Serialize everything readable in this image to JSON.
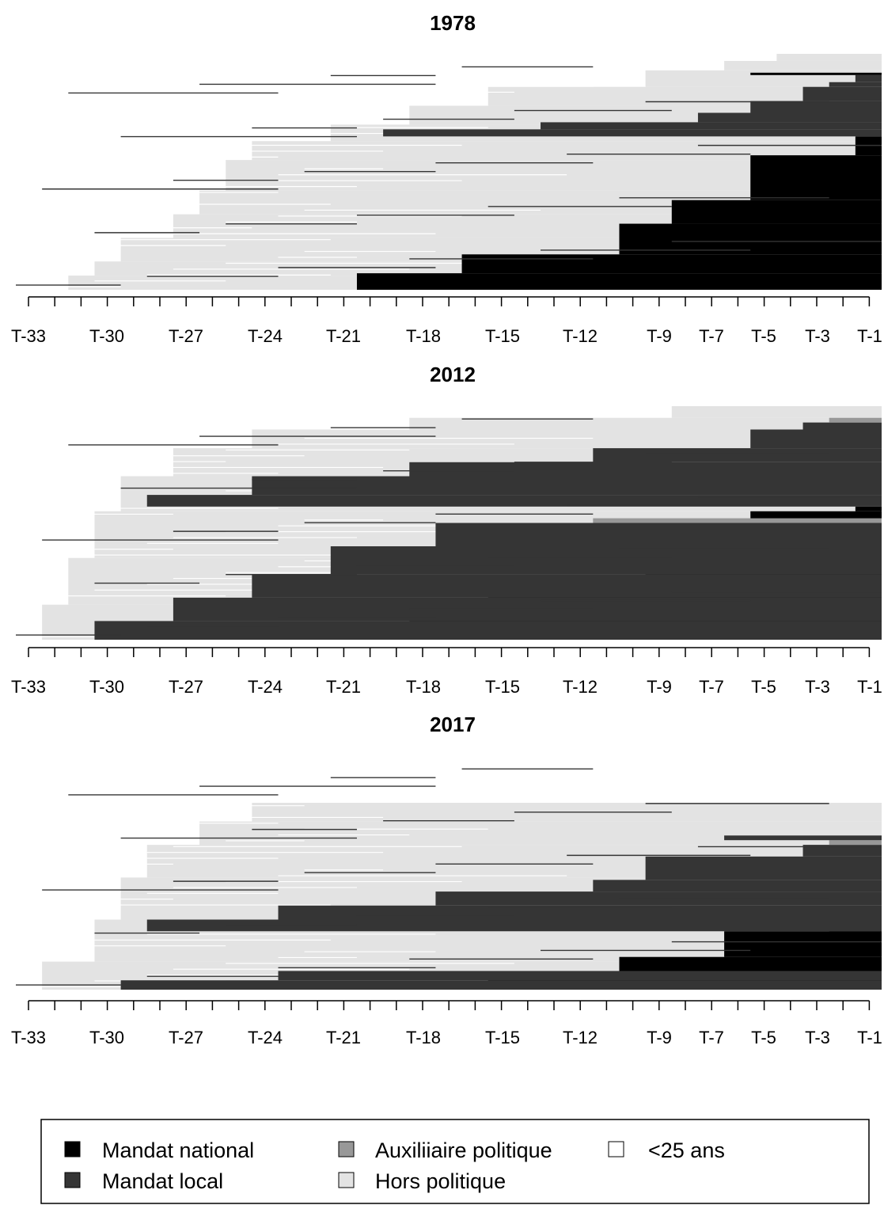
{
  "colors": {
    "national": "#000000",
    "local": "#353535",
    "auxiliary": "#989898",
    "outside": "#e3e3e3",
    "under25": "#ffffff"
  },
  "chart_data": [
    {
      "type": "sequence-index",
      "title": "1978",
      "x_periods": [
        "T-33",
        "T-32",
        "T-31",
        "T-30",
        "T-29",
        "T-28",
        "T-27",
        "T-26",
        "T-25",
        "T-24",
        "T-23",
        "T-22",
        "T-21",
        "T-20",
        "T-19",
        "T-18",
        "T-17",
        "T-16",
        "T-15",
        "T-14",
        "T-13",
        "T-12",
        "T-11",
        "T-10",
        "T-9",
        "T-8",
        "T-7",
        "T-6",
        "T-5",
        "T-4",
        "T-3",
        "T-2",
        "T-1"
      ],
      "tick_labels": [
        "T-33",
        "T-30",
        "T-27",
        "T-24",
        "T-21",
        "T-18",
        "T-15",
        "T-12",
        "T-9",
        "T-7",
        "T-5",
        "T-3",
        "T-1"
      ],
      "bands": [
        {
          "state": "national",
          "from": 0.0,
          "to": 0.0,
          "start": "T-33"
        },
        {
          "state": "national",
          "from": 0.0,
          "to": 0.07,
          "start": "T-20"
        },
        {
          "state": "national",
          "from": 0.07,
          "to": 0.15,
          "start": "T-16"
        },
        {
          "state": "national",
          "from": 0.15,
          "to": 0.28,
          "start": "T-10"
        },
        {
          "state": "national",
          "from": 0.28,
          "to": 0.38,
          "start": "T-8"
        },
        {
          "state": "national",
          "from": 0.38,
          "to": 0.57,
          "start": "T-5"
        },
        {
          "state": "national",
          "from": 0.57,
          "to": 0.65,
          "start": "T-1"
        },
        {
          "state": "local",
          "from": 0.65,
          "to": 0.68,
          "start": "T-19"
        },
        {
          "state": "local",
          "from": 0.68,
          "to": 0.71,
          "start": "T-13"
        },
        {
          "state": "local",
          "from": 0.71,
          "to": 0.75,
          "start": "T-7"
        },
        {
          "state": "local",
          "from": 0.75,
          "to": 0.8,
          "start": "T-5"
        },
        {
          "state": "local",
          "from": 0.8,
          "to": 0.86,
          "start": "T-3"
        },
        {
          "state": "local",
          "from": 0.86,
          "to": 0.88,
          "start": "T-2"
        },
        {
          "state": "local",
          "from": 0.88,
          "to": 0.91,
          "start": "T-1"
        },
        {
          "state": "national",
          "from": 0.91,
          "to": 0.92,
          "start": "T-5"
        }
      ],
      "outside_until": [
        {
          "from": 0.0,
          "to": 0.06,
          "start": "T-31"
        },
        {
          "from": 0.06,
          "to": 0.12,
          "start": "T-30"
        },
        {
          "from": 0.12,
          "to": 0.22,
          "start": "T-29"
        },
        {
          "from": 0.22,
          "to": 0.32,
          "start": "T-27"
        },
        {
          "from": 0.32,
          "to": 0.42,
          "start": "T-26"
        },
        {
          "from": 0.42,
          "to": 0.55,
          "start": "T-25"
        },
        {
          "from": 0.55,
          "to": 0.63,
          "start": "T-24"
        },
        {
          "from": 0.63,
          "to": 0.7,
          "start": "T-21"
        },
        {
          "from": 0.7,
          "to": 0.78,
          "start": "T-18"
        },
        {
          "from": 0.78,
          "to": 0.86,
          "start": "T-15"
        },
        {
          "from": 0.86,
          "to": 0.93,
          "start": "T-9"
        },
        {
          "from": 0.93,
          "to": 0.97,
          "start": "T-6"
        },
        {
          "from": 0.97,
          "to": 1.0,
          "start": "T-4"
        }
      ],
      "outside_base": "T-20"
    },
    {
      "type": "sequence-index",
      "title": "2012",
      "x_periods": [
        "T-33",
        "T-32",
        "T-31",
        "T-30",
        "T-29",
        "T-28",
        "T-27",
        "T-26",
        "T-25",
        "T-24",
        "T-23",
        "T-22",
        "T-21",
        "T-20",
        "T-19",
        "T-18",
        "T-17",
        "T-16",
        "T-15",
        "T-14",
        "T-13",
        "T-12",
        "T-11",
        "T-10",
        "T-9",
        "T-8",
        "T-7",
        "T-6",
        "T-5",
        "T-4",
        "T-3",
        "T-2",
        "T-1"
      ],
      "tick_labels": [
        "T-33",
        "T-30",
        "T-27",
        "T-24",
        "T-21",
        "T-18",
        "T-15",
        "T-12",
        "T-9",
        "T-7",
        "T-5",
        "T-3",
        "T-1"
      ],
      "bands": [
        {
          "state": "national",
          "from": 0.0,
          "to": 0.03,
          "start": "T-24"
        },
        {
          "state": "national",
          "from": 0.03,
          "to": 0.1,
          "start": "T-18"
        },
        {
          "state": "national",
          "from": 0.1,
          "to": 0.2,
          "start": "T-15"
        },
        {
          "state": "national",
          "from": 0.2,
          "to": 0.35,
          "start": "T-9"
        },
        {
          "state": "national",
          "from": 0.35,
          "to": 0.55,
          "start": "T-5"
        },
        {
          "state": "national",
          "from": 0.55,
          "to": 0.57,
          "start": "T-1"
        },
        {
          "state": "local",
          "from": 0.0,
          "to": 0.08,
          "start": "T-30"
        },
        {
          "state": "local",
          "from": 0.08,
          "to": 0.18,
          "start": "T-27"
        },
        {
          "state": "local",
          "from": 0.18,
          "to": 0.28,
          "start": "T-24"
        },
        {
          "state": "local",
          "from": 0.28,
          "to": 0.4,
          "start": "T-21"
        },
        {
          "state": "local",
          "from": 0.4,
          "to": 0.5,
          "start": "T-17"
        },
        {
          "state": "local",
          "from": 0.57,
          "to": 0.62,
          "start": "T-28"
        },
        {
          "state": "local",
          "from": 0.62,
          "to": 0.7,
          "start": "T-24"
        },
        {
          "state": "local",
          "from": 0.7,
          "to": 0.76,
          "start": "T-18"
        },
        {
          "state": "local",
          "from": 0.76,
          "to": 0.82,
          "start": "T-11"
        },
        {
          "state": "local",
          "from": 0.82,
          "to": 0.9,
          "start": "T-5"
        },
        {
          "state": "local",
          "from": 0.9,
          "to": 0.93,
          "start": "T-3"
        },
        {
          "state": "auxiliary",
          "from": 0.93,
          "to": 0.95,
          "start": "T-2"
        },
        {
          "state": "auxiliary",
          "from": 0.5,
          "to": 0.52,
          "start": "T-11"
        }
      ],
      "outside_until": [
        {
          "from": 0.0,
          "to": 0.15,
          "start": "T-32"
        },
        {
          "from": 0.15,
          "to": 0.35,
          "start": "T-31"
        },
        {
          "from": 0.35,
          "to": 0.55,
          "start": "T-30"
        },
        {
          "from": 0.55,
          "to": 0.7,
          "start": "T-29"
        },
        {
          "from": 0.7,
          "to": 0.82,
          "start": "T-27"
        },
        {
          "from": 0.82,
          "to": 0.9,
          "start": "T-24"
        },
        {
          "from": 0.9,
          "to": 0.95,
          "start": "T-18"
        },
        {
          "from": 0.95,
          "to": 1.0,
          "start": "T-8"
        }
      ],
      "outside_base": "T-30"
    },
    {
      "type": "sequence-index",
      "title": "2017",
      "x_periods": [
        "T-33",
        "T-32",
        "T-31",
        "T-30",
        "T-29",
        "T-28",
        "T-27",
        "T-26",
        "T-25",
        "T-24",
        "T-23",
        "T-22",
        "T-21",
        "T-20",
        "T-19",
        "T-18",
        "T-17",
        "T-16",
        "T-15",
        "T-14",
        "T-13",
        "T-12",
        "T-11",
        "T-10",
        "T-9",
        "T-8",
        "T-7",
        "T-6",
        "T-5",
        "T-4",
        "T-3",
        "T-2",
        "T-1"
      ],
      "tick_labels": [
        "T-33",
        "T-30",
        "T-27",
        "T-24",
        "T-21",
        "T-18",
        "T-15",
        "T-12",
        "T-9",
        "T-7",
        "T-5",
        "T-3",
        "T-1"
      ],
      "bands": [
        {
          "state": "national",
          "from": 0.0,
          "to": 0.06,
          "start": "T-15"
        },
        {
          "state": "national",
          "from": 0.06,
          "to": 0.14,
          "start": "T-10"
        },
        {
          "state": "national",
          "from": 0.14,
          "to": 0.25,
          "start": "T-6"
        },
        {
          "state": "national",
          "from": 0.25,
          "to": 0.27,
          "start": "T-2"
        },
        {
          "state": "local",
          "from": 0.0,
          "to": 0.04,
          "start": "T-29"
        },
        {
          "state": "local",
          "from": 0.04,
          "to": 0.08,
          "start": "T-23"
        },
        {
          "state": "local",
          "from": 0.25,
          "to": 0.3,
          "start": "T-28"
        },
        {
          "state": "local",
          "from": 0.3,
          "to": 0.36,
          "start": "T-23"
        },
        {
          "state": "local",
          "from": 0.36,
          "to": 0.42,
          "start": "T-17"
        },
        {
          "state": "local",
          "from": 0.42,
          "to": 0.47,
          "start": "T-11"
        },
        {
          "state": "local",
          "from": 0.47,
          "to": 0.57,
          "start": "T-9"
        },
        {
          "state": "local",
          "from": 0.57,
          "to": 0.62,
          "start": "T-3"
        },
        {
          "state": "auxiliary",
          "from": 0.62,
          "to": 0.64,
          "start": "T-2"
        },
        {
          "state": "local",
          "from": 0.64,
          "to": 0.66,
          "start": "T-6"
        }
      ],
      "outside_until": [
        {
          "from": 0.0,
          "to": 0.12,
          "start": "T-32"
        },
        {
          "from": 0.12,
          "to": 0.3,
          "start": "T-30"
        },
        {
          "from": 0.3,
          "to": 0.48,
          "start": "T-29"
        },
        {
          "from": 0.48,
          "to": 0.62,
          "start": "T-28"
        },
        {
          "from": 0.62,
          "to": 0.72,
          "start": "T-26"
        },
        {
          "from": 0.72,
          "to": 0.8,
          "start": "T-24"
        }
      ],
      "outside_base": "T-30"
    }
  ],
  "legend": {
    "items": [
      {
        "key": "national",
        "label": "Mandat national"
      },
      {
        "key": "local",
        "label": "Mandat local"
      },
      {
        "key": "auxiliary",
        "label": "Auxiliiaire politique"
      },
      {
        "key": "outside",
        "label": "Hors politique"
      },
      {
        "key": "under25",
        "label": "<25 ans"
      }
    ]
  }
}
